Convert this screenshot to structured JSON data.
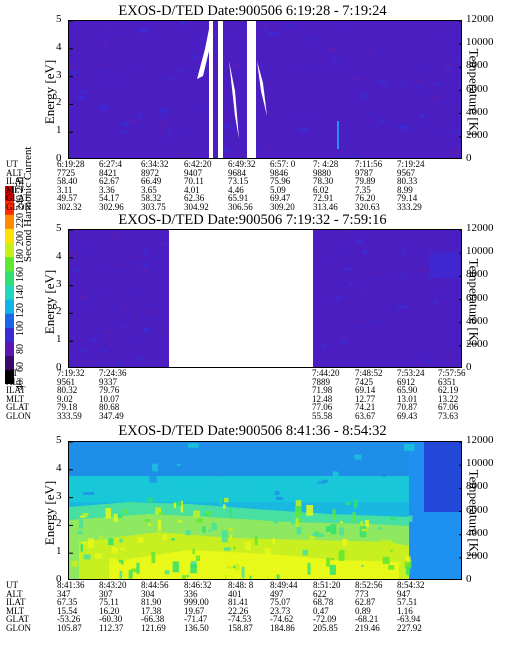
{
  "chart_data": [
    {
      "type": "heatmap",
      "title": "EXOS-D/TED   Date:900506  6:19:28 - 7:19:24",
      "ylabel": "Energy [eV]",
      "ylabel_right": "Temperature [K]",
      "ylim": [
        0,
        5
      ],
      "ylim_right": [
        0,
        12000
      ],
      "y_ticks": [
        "0",
        "1",
        "2",
        "3",
        "4",
        "5"
      ],
      "y_ticks_right": [
        "0",
        "2000",
        "4000",
        "6000",
        "8000",
        "10000",
        "12000"
      ],
      "colormap": {
        "background": "#4a1ec0",
        "accent": "#3c2ad6"
      },
      "gaps": [
        "6:42:20",
        "6:46:00"
      ],
      "ephemeris": {
        "labels": [
          "UT",
          "ALT",
          "ILAT",
          "MLT",
          "GLAT",
          "GLON"
        ],
        "columns": [
          [
            "6:19:28",
            "7725",
            "58.40",
            "3.11",
            "49.57",
            "302.32"
          ],
          [
            "6:27:4",
            "8421",
            "62.67",
            "3.36",
            "54.17",
            "302.96"
          ],
          [
            "6:34:32",
            "8972",
            "66.49",
            "3.65",
            "58.32",
            "303.75"
          ],
          [
            "6:42:20",
            "9407",
            "70.11",
            "4.01",
            "62.36",
            "304.92"
          ],
          [
            "6:49:32",
            "9684",
            "73.15",
            "4.46",
            "65.91",
            "306.56"
          ],
          [
            "6:57: 0",
            "9846",
            "75.96",
            "5.09",
            "69.47",
            "309.20"
          ],
          [
            "7: 4:28",
            "9880",
            "78.30",
            "6.02",
            "72.91",
            "313.46"
          ],
          [
            "7:11:56",
            "9787",
            "79.89",
            "7.35",
            "76.20",
            "320.63"
          ],
          [
            "7:19:24",
            "9567",
            "80.33",
            "8.99",
            "79.14",
            "333.29"
          ]
        ]
      }
    },
    {
      "type": "heatmap",
      "title": "EXOS-D/TED   Date:900506  7:19:32 - 7:59:16",
      "ylabel": "Energy [eV]",
      "ylabel_right": "Temperature [K]",
      "ylim": [
        0,
        5
      ],
      "ylim_right": [
        0,
        12000
      ],
      "y_ticks": [
        "0",
        "1",
        "2",
        "3",
        "4",
        "5"
      ],
      "y_ticks_right": [
        "0",
        "2000",
        "4000",
        "6000",
        "8000",
        "10000",
        "12000"
      ],
      "gaps": [
        "7:24:36",
        "7:44:20"
      ],
      "ephemeris": {
        "labels": [
          "UT",
          "ALT",
          "ILAT",
          "MLT",
          "GLAT",
          "GLON"
        ],
        "columns": [
          [
            "7:19:32",
            "9561",
            "80.32",
            "9.02",
            "79.18",
            "333.59"
          ],
          [
            "7:24:36",
            "9337",
            "79.76",
            "10.07",
            "80.68",
            "347.49"
          ],
          [
            "7:44:20",
            "7889",
            "71.98",
            "12.48",
            "77.06",
            "55.58"
          ],
          [
            "7:48:52",
            "7425",
            "69.14",
            "12.77",
            "74.21",
            "63.67"
          ],
          [
            "7:53:24",
            "6912",
            "65.90",
            "13.01",
            "70.87",
            "69.43"
          ],
          [
            "7:57:56",
            "6351",
            "62.19",
            "13.22",
            "67.06",
            "73.63"
          ]
        ]
      }
    },
    {
      "type": "heatmap",
      "title": "EXOS-D/TED   Date:900506  8:41:36 - 8:54:32",
      "ylabel": "Energy [eV]",
      "ylabel_right": "Temperature [K]",
      "ylim": [
        0,
        5
      ],
      "ylim_right": [
        0,
        12000
      ],
      "y_ticks": [
        "0",
        "1",
        "2",
        "3",
        "4",
        "5"
      ],
      "y_ticks_right": [
        "0",
        "2000",
        "4000",
        "6000",
        "8000",
        "10000",
        "12000"
      ],
      "ephemeris": {
        "labels": [
          "UT",
          "ALT",
          "ILAT",
          "MLT",
          "GLAT",
          "GLON"
        ],
        "columns": [
          [
            "8:41:36",
            "347",
            "67.35",
            "15.54",
            "-53.26",
            "105.87"
          ],
          [
            "8:43:20",
            "307",
            "75.11",
            "16.20",
            "-60.30",
            "112.37"
          ],
          [
            "8:44:56",
            "304",
            "81.90",
            "17.38",
            "-66.38",
            "121.69"
          ],
          [
            "8:46:32",
            "336",
            "999.00",
            "19.67",
            "-71.47",
            "136.50"
          ],
          [
            "8:48: 8",
            "401",
            "81.41",
            "22.26",
            "-74.53",
            "158.87"
          ],
          [
            "8:49:44",
            "497",
            "75.07",
            "23.73",
            "-74.62",
            "184.86"
          ],
          [
            "8:51:20",
            "622",
            "68.78",
            "0.47",
            "-72.09",
            "205.85"
          ],
          [
            "8:52:56",
            "773",
            "62.87",
            "0.89",
            "-68.21",
            "219.46"
          ],
          [
            "8:54:32",
            "947",
            "57.51",
            "1.16",
            "-63.94",
            "227.92"
          ]
        ]
      }
    }
  ],
  "colorbar": {
    "title": "Second Harmonic Current",
    "ticks": [
      "40",
      "60",
      "80",
      "100",
      "120",
      "140",
      "160",
      "180",
      "200",
      "220",
      "240",
      "250"
    ],
    "colors": [
      "#000000",
      "#3a0a6a",
      "#5a16b0",
      "#3c2ad6",
      "#1a66e8",
      "#10b4e8",
      "#20d8c0",
      "#30e070",
      "#60e830",
      "#c8f018",
      "#ffe000",
      "#ff8a00",
      "#ff2a00",
      "#d00000"
    ]
  }
}
